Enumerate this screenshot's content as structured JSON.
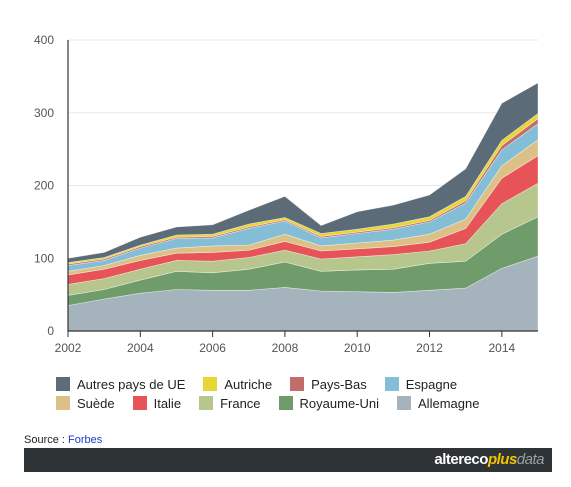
{
  "chart_data": {
    "type": "area",
    "stacked": true,
    "x": [
      2002,
      2003,
      2004,
      2005,
      2006,
      2007,
      2008,
      2009,
      2010,
      2011,
      2012,
      2013,
      2014,
      2015
    ],
    "xticks": [
      "2002",
      "2004",
      "2006",
      "2008",
      "2010",
      "2012",
      "2014"
    ],
    "yticks": [
      "0",
      "100",
      "200",
      "300",
      "400"
    ],
    "ylim": [
      0,
      400
    ],
    "xlim": [
      2002,
      2015
    ],
    "title": "",
    "xlabel": "",
    "ylabel": "",
    "series": [
      {
        "name": "Allemagne",
        "color": "#a5b3bd",
        "values": [
          35,
          44,
          52,
          57,
          56,
          56,
          60,
          55,
          54,
          53,
          56,
          59,
          86,
          103
        ]
      },
      {
        "name": "Royaume-Uni",
        "color": "#709c6b",
        "values": [
          14,
          13,
          18,
          25,
          24,
          29,
          35,
          27,
          30,
          32,
          37,
          37,
          47,
          54
        ]
      },
      {
        "name": "France",
        "color": "#b6c68c",
        "values": [
          15,
          15,
          15,
          15,
          16,
          16,
          16,
          17,
          18,
          20,
          17,
          24,
          42,
          46
        ]
      },
      {
        "name": "Italie",
        "color": "#e65458",
        "values": [
          13,
          13,
          12,
          10,
          12,
          10,
          12,
          11,
          11,
          11,
          12,
          21,
          35,
          38
        ]
      },
      {
        "name": "Suède",
        "color": "#dcc187",
        "values": [
          5,
          5,
          7,
          7,
          9,
          7,
          10,
          7,
          8,
          9,
          11,
          13,
          17,
          22
        ]
      },
      {
        "name": "Espagne",
        "color": "#84bdd6",
        "values": [
          8,
          7,
          10,
          13,
          11,
          23,
          18,
          11,
          13,
          15,
          17,
          22,
          22,
          22
        ]
      },
      {
        "name": "Pays-Bas",
        "color": "#c46b6b",
        "values": [
          2,
          2,
          2,
          2,
          2,
          2,
          2,
          2,
          2,
          2,
          2,
          3,
          6,
          7
        ]
      },
      {
        "name": "Autriche",
        "color": "#e6d533",
        "values": [
          2,
          2,
          2,
          3,
          3,
          4,
          3,
          4,
          4,
          5,
          5,
          6,
          7,
          7
        ]
      },
      {
        "name": "Autres pays de UE",
        "color": "#5b6b78",
        "values": [
          6,
          7,
          11,
          11,
          13,
          19,
          29,
          11,
          24,
          26,
          30,
          38,
          51,
          42
        ]
      }
    ],
    "legend_order": [
      "Autres pays de UE",
      "Autriche",
      "Pays-Bas",
      "Espagne",
      "Suède",
      "Italie",
      "France",
      "Royaume-Uni",
      "Allemagne"
    ],
    "legend_position": "bottom"
  },
  "source": {
    "label": "Source : ",
    "link_text": "Forbes"
  },
  "brand": {
    "part1": "altereco",
    "part2": "plus",
    "part3": "data"
  }
}
